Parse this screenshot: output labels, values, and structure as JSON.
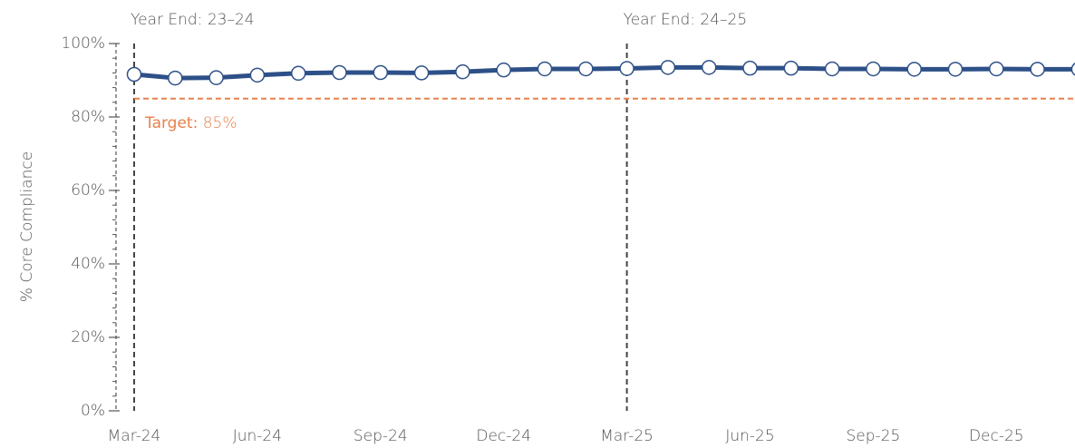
{
  "chart_data": {
    "type": "line",
    "y_label": "% Core Compliance",
    "categories": [
      "Mar-24",
      null,
      null,
      "Jun-24",
      null,
      null,
      "Sep-24",
      null,
      null,
      "Dec-24",
      null,
      null,
      "Mar-25",
      null,
      null,
      "Jun-25",
      null,
      null,
      "Sep-25",
      null,
      null,
      "Dec-25",
      null,
      null
    ],
    "series": [
      {
        "name": "% Core Compliance",
        "color": "#2e5088",
        "values": [
          91.6,
          90.6,
          90.7,
          91.4,
          91.9,
          92.1,
          92.1,
          92.0,
          92.3,
          92.8,
          93.1,
          93.1,
          93.2,
          93.5,
          93.5,
          93.3,
          93.3,
          93.1,
          93.1,
          93.0,
          93.0,
          93.1,
          93.0,
          93.0
        ]
      }
    ],
    "ylim": [
      0,
      100
    ],
    "yticks": [
      {
        "value": 0,
        "label": "0%"
      },
      {
        "value": 20,
        "label": "20%"
      },
      {
        "value": 40,
        "label": "40%"
      },
      {
        "value": 60,
        "label": "60%"
      },
      {
        "value": 80,
        "label": "80%"
      },
      {
        "value": 100,
        "label": "100%"
      }
    ],
    "yminorticks": [
      4,
      8,
      12,
      16,
      24,
      28,
      32,
      36,
      44,
      48,
      52,
      56,
      64,
      68,
      72,
      76,
      84,
      88,
      92,
      96
    ],
    "target": {
      "label": "Target:",
      "value": 85,
      "value_label": "85%",
      "color": "#e8804a"
    },
    "vlines": [
      {
        "x": "Mar-24",
        "label": "Year End: 23–24"
      },
      {
        "x": "Mar-25",
        "label": "Year End: 24–25"
      }
    ]
  }
}
